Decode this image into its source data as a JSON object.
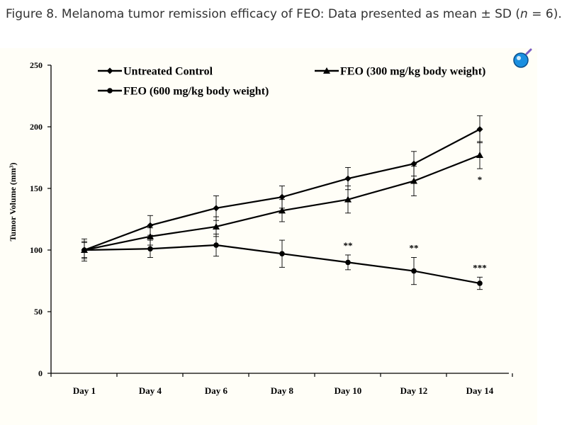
{
  "caption": {
    "prefix": "Figure 8. Melanoma tumor remission efficacy of FEO: Data presented as mean ± SD (",
    "n_symbol": "n",
    "suffix": " = 6)."
  },
  "logo_icon": "magnifier-badge-icon",
  "colors": {
    "series": "#000000",
    "background": "#fffef7",
    "caption": "#333333",
    "logo": "#1a8fe0"
  },
  "chart_data": {
    "type": "line",
    "ylabel": "Tumor Volume (mm³)",
    "xlabel": "",
    "categories": [
      "Day 1",
      "Day 4",
      "Day 6",
      "Day 8",
      "Day 10",
      "Day 12",
      "Day 14"
    ],
    "ylim": [
      0,
      250
    ],
    "yticks": [
      0,
      50,
      100,
      150,
      200,
      250
    ],
    "grid": false,
    "legend_position": "top",
    "series": [
      {
        "name": "Untreated Control",
        "marker": "diamond",
        "values": [
          100,
          120,
          134,
          143,
          158,
          170,
          198
        ],
        "sd": [
          7,
          8,
          10,
          9,
          9,
          10,
          11
        ],
        "significance": [
          "",
          "",
          "",
          "",
          "",
          "",
          ""
        ]
      },
      {
        "name": "FEO (300 mg/kg body weight)",
        "marker": "triangle",
        "values": [
          100,
          111,
          119,
          132,
          141,
          156,
          177
        ],
        "sd": [
          6,
          7,
          8,
          9,
          11,
          12,
          11
        ],
        "significance": [
          "",
          "",
          "",
          "",
          "",
          "",
          "*"
        ]
      },
      {
        "name": "FEO (600 mg/kg body weight)",
        "marker": "circle",
        "values": [
          100,
          101,
          104,
          97,
          90,
          83,
          73
        ],
        "sd": [
          9,
          7,
          9,
          11,
          6,
          11,
          5
        ],
        "significance": [
          "",
          "",
          "",
          "",
          "**",
          "**",
          "***"
        ]
      }
    ]
  }
}
